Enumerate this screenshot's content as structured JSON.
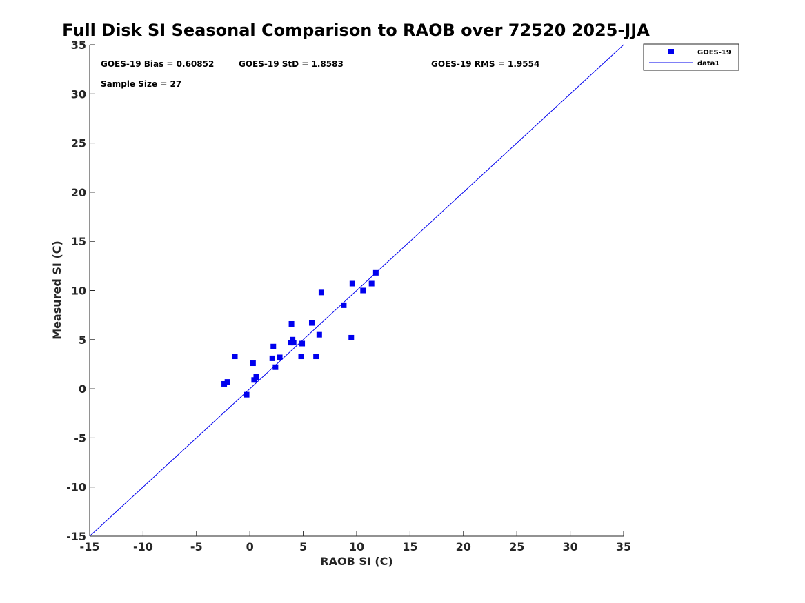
{
  "chart_data": {
    "type": "scatter",
    "title": "Full Disk SI Seasonal Comparison to RAOB over 72520 2025-JJA",
    "xlabel": "RAOB SI (C)",
    "ylabel": "Measured SI (C)",
    "xlim": [
      -15,
      35
    ],
    "ylim": [
      -15,
      35
    ],
    "xticks": [
      -15,
      -10,
      -5,
      0,
      5,
      10,
      15,
      20,
      25,
      30,
      35
    ],
    "yticks": [
      -15,
      -10,
      -5,
      0,
      5,
      10,
      15,
      20,
      25,
      30,
      35
    ],
    "grid": false,
    "legend_position": "top-right",
    "annotations": {
      "bias": "GOES-19 Bias = 0.60852",
      "std": "GOES-19 StD = 1.8583",
      "rms": "GOES-19 RMS = 1.9554",
      "sample": "Sample Size = 27"
    },
    "series": [
      {
        "name": "GOES-19",
        "kind": "scatter",
        "marker": "square",
        "color": "#0000ee",
        "points": [
          [
            -2.4,
            0.5
          ],
          [
            -2.1,
            0.7
          ],
          [
            -1.4,
            3.3
          ],
          [
            -0.3,
            -0.6
          ],
          [
            0.3,
            2.6
          ],
          [
            0.4,
            0.9
          ],
          [
            0.6,
            1.2
          ],
          [
            2.1,
            3.1
          ],
          [
            2.2,
            4.3
          ],
          [
            2.4,
            2.2
          ],
          [
            2.8,
            3.2
          ],
          [
            3.8,
            4.7
          ],
          [
            3.9,
            6.6
          ],
          [
            4.0,
            5.0
          ],
          [
            4.1,
            4.7
          ],
          [
            4.8,
            3.3
          ],
          [
            4.9,
            4.6
          ],
          [
            5.8,
            6.7
          ],
          [
            6.2,
            3.3
          ],
          [
            6.5,
            5.5
          ],
          [
            6.7,
            9.8
          ],
          [
            8.8,
            8.5
          ],
          [
            9.5,
            5.2
          ],
          [
            9.6,
            10.7
          ],
          [
            10.6,
            10.0
          ],
          [
            11.4,
            10.7
          ],
          [
            11.8,
            11.8
          ]
        ]
      },
      {
        "name": "data1",
        "kind": "line",
        "color": "#0000ee",
        "points": [
          [
            -15,
            -15
          ],
          [
            35,
            35
          ]
        ]
      }
    ]
  }
}
